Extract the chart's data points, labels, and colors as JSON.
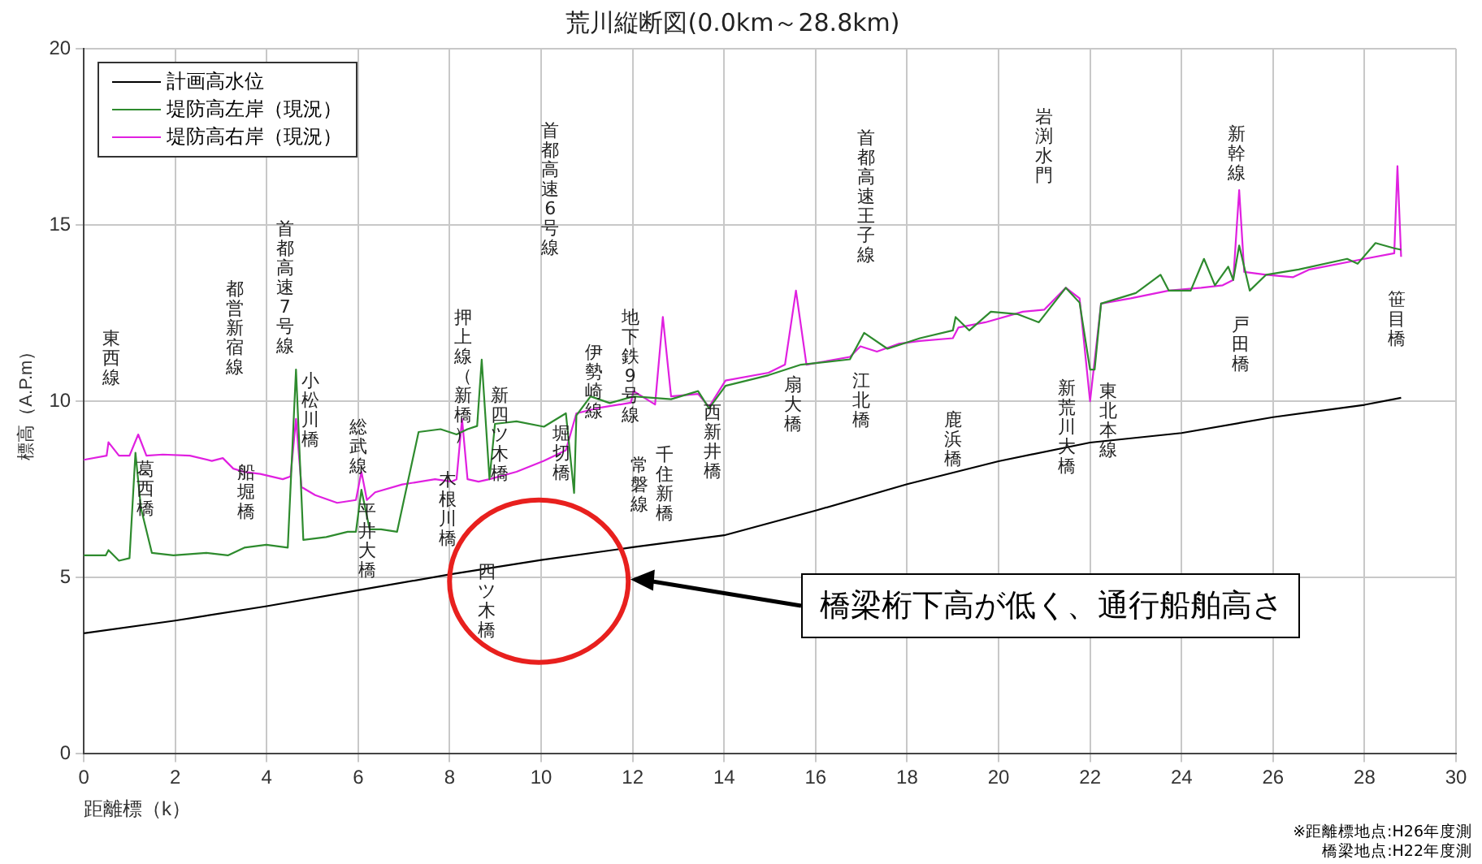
{
  "chart_data": {
    "type": "line",
    "title": "荒川縦断図(0.0km～28.8km)",
    "xlabel": "距離標（k）",
    "ylabel": "標高（A.P.m）",
    "xlim": [
      0,
      30
    ],
    "xticks": [
      0,
      2,
      4,
      6,
      8,
      10,
      12,
      14,
      16,
      18,
      20,
      22,
      24,
      26,
      28,
      30
    ],
    "ylim": [
      0,
      20
    ],
    "yticks": [
      0,
      5,
      10,
      15,
      20
    ],
    "grid": true,
    "legend": "top left",
    "marker": "none",
    "line_style": "solid",
    "series": [
      {
        "name": "計画高水位",
        "color": "#000000",
        "x": [
          0,
          2,
          4,
          6,
          8,
          10,
          12,
          14,
          16,
          18,
          20,
          22,
          24,
          26,
          28,
          28.8
        ],
        "values": [
          3.42,
          3.78,
          4.19,
          4.64,
          5.09,
          5.5,
          5.86,
          6.2,
          6.9,
          7.65,
          8.3,
          8.83,
          9.1,
          9.55,
          9.9,
          10.1
        ]
      },
      {
        "name": "堤防高左岸（現況）",
        "color": "#2e8b2e",
        "x": [
          0,
          0.48,
          0.54,
          0.77,
          1.0,
          1.13,
          1.25,
          1.49,
          1.96,
          2.68,
          3.15,
          3.51,
          3.99,
          4.46,
          4.64,
          4.8,
          5.3,
          5.77,
          5.95,
          6.07,
          6.25,
          6.5,
          6.85,
          7.32,
          7.8,
          8.15,
          8.39,
          8.6,
          8.7,
          8.87,
          8.99,
          9.46,
          10.06,
          10.54,
          10.72,
          10.77,
          11.08,
          11.5,
          12.02,
          12.84,
          13.43,
          13.67,
          14.03,
          14.97,
          15.68,
          16.75,
          17.06,
          17.57,
          18.28,
          19.0,
          19.06,
          19.36,
          19.83,
          20.42,
          20.88,
          21.47,
          21.77,
          22.0,
          22.1,
          22.24,
          23.0,
          23.54,
          23.72,
          24.2,
          24.49,
          24.73,
          25.02,
          25.13,
          25.26,
          25.49,
          25.85,
          26.56,
          27.62,
          27.85,
          28.24,
          28.65,
          28.8
        ],
        "values": [
          5.63,
          5.63,
          5.78,
          5.48,
          5.55,
          8.54,
          6.97,
          5.7,
          5.63,
          5.7,
          5.63,
          5.85,
          5.93,
          5.85,
          10.9,
          6.07,
          6.15,
          6.3,
          6.3,
          7.49,
          6.37,
          6.37,
          6.3,
          9.13,
          9.21,
          9.06,
          9.21,
          9.3,
          11.18,
          7.79,
          9.36,
          9.43,
          9.28,
          9.66,
          7.4,
          9.6,
          10.14,
          9.95,
          10.14,
          10.06,
          10.29,
          9.8,
          10.44,
          10.74,
          11.04,
          11.19,
          11.94,
          11.49,
          11.79,
          12.01,
          12.39,
          12.01,
          12.54,
          12.47,
          12.24,
          13.22,
          12.8,
          10.9,
          10.9,
          12.77,
          13.07,
          13.59,
          13.14,
          13.14,
          14.04,
          13.29,
          13.82,
          13.44,
          14.42,
          13.14,
          13.59,
          13.74,
          14.04,
          13.9,
          14.49,
          14.34,
          14.3
        ]
      },
      {
        "name": "堤防高右岸（現況）",
        "color": "#e020e0",
        "x": [
          0,
          0.5,
          0.54,
          0.77,
          1.0,
          1.19,
          1.37,
          1.73,
          2.32,
          2.8,
          3.04,
          3.27,
          3.5,
          3.86,
          4.35,
          4.52,
          4.64,
          4.76,
          5.06,
          5.54,
          5.95,
          6.07,
          6.19,
          6.37,
          6.96,
          7.68,
          8.04,
          8.15,
          8.27,
          8.39,
          8.63,
          8.87,
          9.46,
          10.06,
          10.54,
          10.77,
          11.25,
          11.96,
          12.02,
          12.49,
          12.66,
          12.84,
          13.43,
          13.67,
          14.03,
          14.97,
          15.33,
          15.57,
          15.8,
          16.75,
          16.98,
          17.34,
          17.81,
          18.28,
          19.0,
          19.12,
          19.71,
          20.53,
          21.0,
          21.47,
          21.77,
          22.0,
          22.24,
          22.89,
          23.72,
          24.43,
          24.9,
          25.13,
          25.26,
          25.37,
          25.85,
          26.44,
          26.8,
          28.0,
          28.65,
          28.72,
          28.8
        ],
        "values": [
          8.34,
          8.46,
          8.84,
          8.46,
          8.46,
          9.06,
          8.46,
          8.49,
          8.46,
          8.31,
          8.39,
          8.09,
          8.0,
          7.94,
          7.79,
          7.87,
          9.5,
          7.57,
          7.34,
          7.12,
          7.2,
          8.0,
          7.2,
          7.42,
          7.64,
          7.79,
          7.72,
          7.79,
          9.5,
          7.79,
          7.72,
          7.79,
          8.0,
          8.31,
          8.61,
          9.66,
          9.81,
          9.96,
          10.29,
          9.91,
          12.39,
          10.14,
          10.21,
          9.84,
          10.59,
          10.81,
          11.04,
          13.14,
          11.04,
          11.26,
          11.56,
          11.41,
          11.63,
          11.71,
          11.79,
          12.09,
          12.24,
          12.54,
          12.6,
          13.22,
          12.92,
          10.0,
          12.77,
          12.92,
          13.14,
          13.22,
          13.29,
          13.44,
          15.99,
          13.67,
          13.59,
          13.52,
          13.74,
          14.04,
          14.2,
          16.67,
          14.1
        ]
      }
    ],
    "annotations": [
      "東西線",
      "葛西橋",
      "都営新宿線",
      "船堀橋",
      "首都高速7号線",
      "小松川橋",
      "総武線",
      "平井大橋",
      "押上線（新橋）",
      "木根川橋",
      "新四ツ木橋",
      "四ツ木橋",
      "首都高速6号線",
      "堀切橋",
      "伊勢崎線",
      "地下鉄9号線",
      "常磐線",
      "千住新橋",
      "西新井橋",
      "扇大橋",
      "江北橋",
      "首都高速王子線",
      "鹿浜橋",
      "岩渕水門",
      "新荒川大橋",
      "東北本線",
      "新幹線",
      "戸田橋",
      "笹目橋",
      "橋梁桁下高が低く、通行船舶高さ",
      "※距離標地点:H26年度測",
      "橋梁地点:H22年度測"
    ]
  }
}
